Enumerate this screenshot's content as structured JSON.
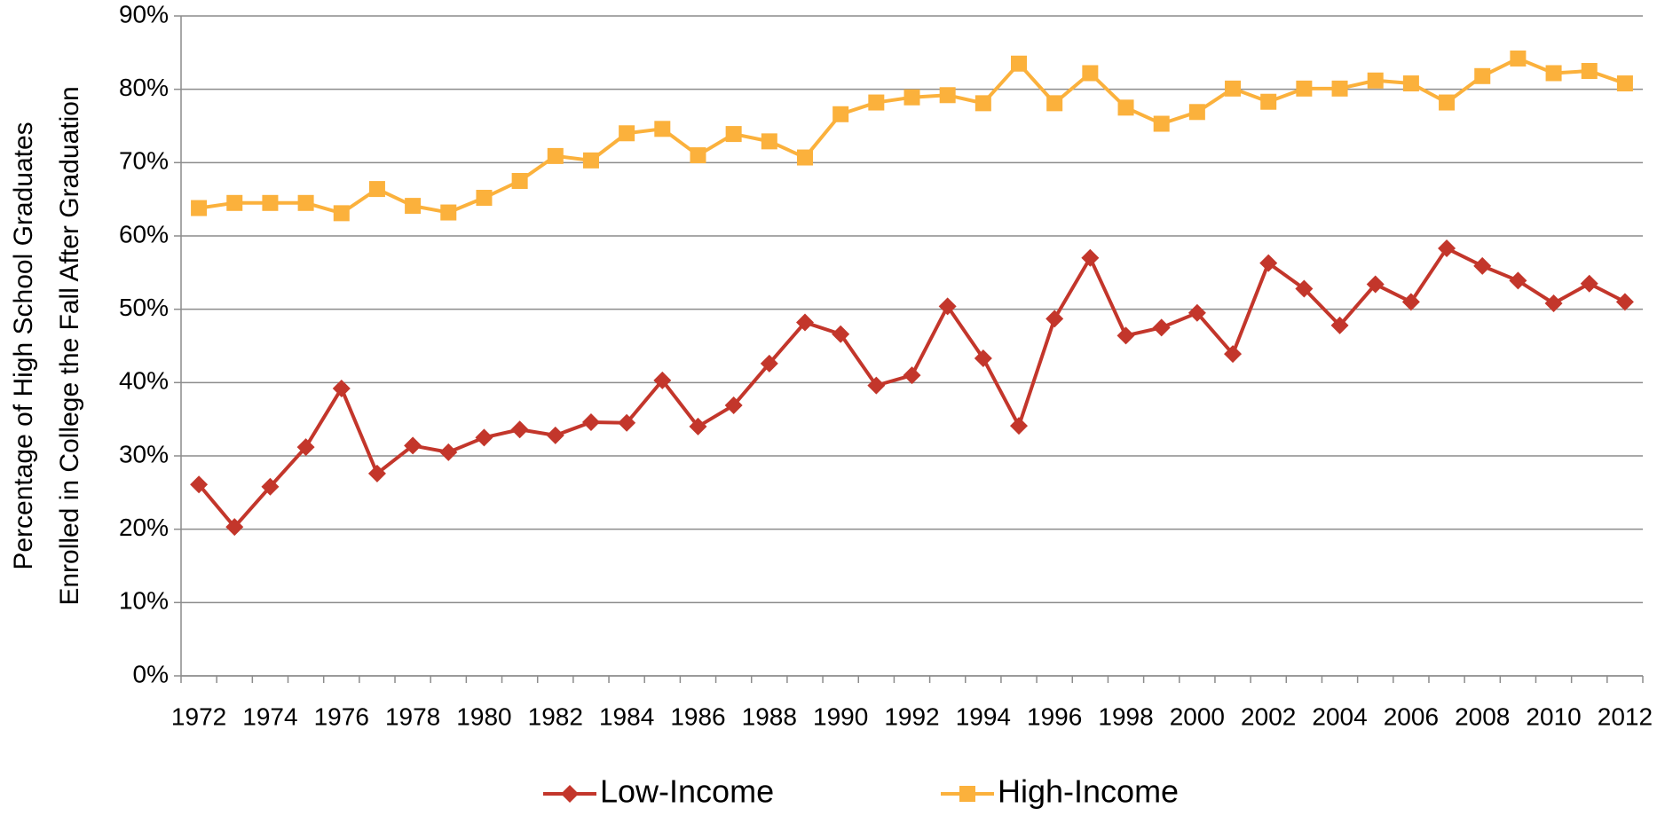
{
  "chart_data": {
    "type": "line",
    "ylabel": [
      "Percentage of High School Graduates",
      "Enrolled in College the Fall After Graduation"
    ],
    "categories": [
      "1972",
      null,
      "1974",
      null,
      "1976",
      null,
      "1978",
      null,
      "1980",
      null,
      "1982",
      null,
      "1984",
      null,
      "1986",
      null,
      "1988",
      null,
      "1990",
      null,
      "1992",
      null,
      "1994",
      null,
      "1996",
      null,
      "1998",
      null,
      "2000",
      null,
      "2002",
      null,
      "2004",
      null,
      "2006",
      null,
      "2008",
      null,
      "2010",
      null,
      "2012"
    ],
    "series": [
      {
        "name": "Low-Income",
        "color": "#c3362b",
        "marker": "diamond",
        "values": [
          26.1,
          20.3,
          25.8,
          31.2,
          39.2,
          27.6,
          31.4,
          30.5,
          32.5,
          33.6,
          32.8,
          34.6,
          34.5,
          40.3,
          34.0,
          36.9,
          42.6,
          48.2,
          46.6,
          39.6,
          41.0,
          50.4,
          43.3,
          34.1,
          48.7,
          57.0,
          46.4,
          47.5,
          49.5,
          43.9,
          56.3,
          52.8,
          47.8,
          53.4,
          51.0,
          58.3,
          55.9,
          53.9,
          50.8,
          53.5,
          51.0
        ]
      },
      {
        "name": "High-Income",
        "color": "#fbb13c",
        "marker": "square",
        "values": [
          63.8,
          64.5,
          64.5,
          64.5,
          63.1,
          66.4,
          64.1,
          63.2,
          65.2,
          67.5,
          70.9,
          70.3,
          74.0,
          74.6,
          71.0,
          73.9,
          72.9,
          70.7,
          76.6,
          78.2,
          78.9,
          79.2,
          78.1,
          83.5,
          78.1,
          82.2,
          77.5,
          75.3,
          76.9,
          80.1,
          78.3,
          80.1,
          80.1,
          81.2,
          80.8,
          78.2,
          81.8,
          84.2,
          82.2,
          82.5,
          80.8
        ]
      }
    ],
    "ylim": [
      0,
      90
    ],
    "yticks": [
      {
        "value": 0,
        "label": "0%"
      },
      {
        "value": 10,
        "label": "10%"
      },
      {
        "value": 20,
        "label": "20%"
      },
      {
        "value": 30,
        "label": "30%"
      },
      {
        "value": 40,
        "label": "40%"
      },
      {
        "value": 50,
        "label": "50%"
      },
      {
        "value": 60,
        "label": "60%"
      },
      {
        "value": 70,
        "label": "70%"
      },
      {
        "value": 80,
        "label": "80%"
      },
      {
        "value": 90,
        "label": "90%"
      }
    ],
    "grid": true,
    "legend": "bottom"
  }
}
